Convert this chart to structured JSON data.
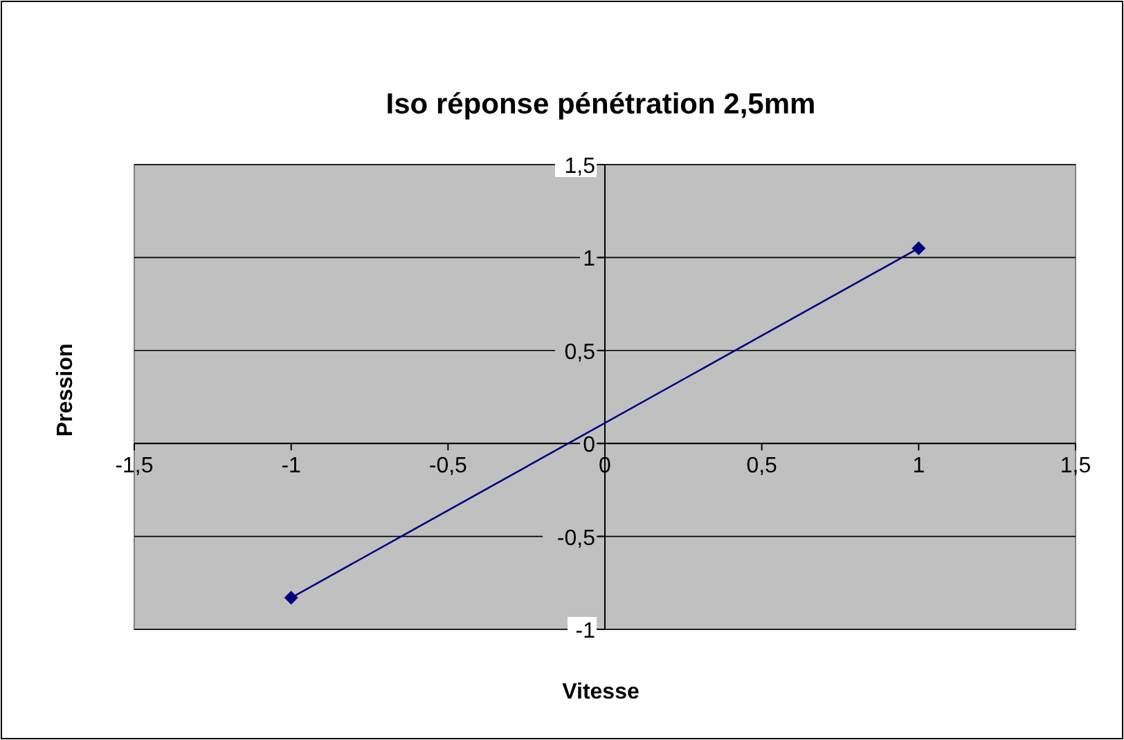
{
  "chart_data": {
    "type": "line",
    "title": "Iso réponse pénétration 2,5mm",
    "xlabel": "Vitesse",
    "ylabel": "Pression",
    "x": [
      -1,
      1
    ],
    "series": [
      {
        "color": "#000080",
        "values": [
          -0.83,
          1.05
        ]
      }
    ],
    "xlim": [
      -1.5,
      1.5
    ],
    "xticks": [
      {
        "value": -1.5,
        "label": "-1,5"
      },
      {
        "value": -1,
        "label": "-1"
      },
      {
        "value": -0.5,
        "label": "-0,5"
      },
      {
        "value": 0,
        "label": "0"
      },
      {
        "value": 0.5,
        "label": "0,5"
      },
      {
        "value": 1,
        "label": "1"
      },
      {
        "value": 1.5,
        "label": "1,5"
      }
    ],
    "ylim": [
      -1,
      1.5
    ],
    "yticks": [
      {
        "value": -1,
        "label": "-1"
      },
      {
        "value": -0.5,
        "label": "-0,5"
      },
      {
        "value": 0,
        "label": "0"
      },
      {
        "value": 0.5,
        "label": "0,5"
      },
      {
        "value": 1,
        "label": "1"
      },
      {
        "value": 1.5,
        "label": "1,5"
      }
    ],
    "grid": "y",
    "marker": "diamond",
    "line_style": "solid"
  }
}
